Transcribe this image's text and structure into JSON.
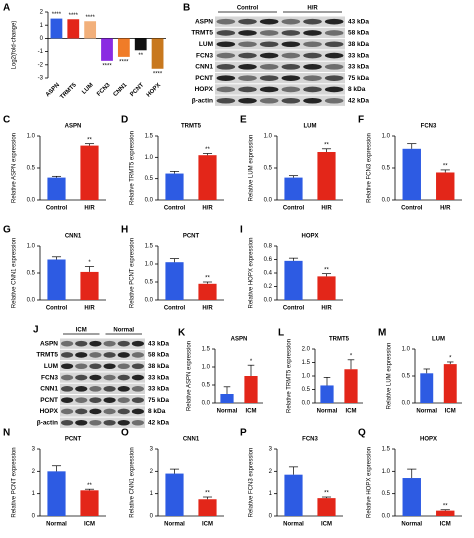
{
  "chart_data": [
    {
      "type": "bar",
      "panel": "A",
      "y_label": "Log2(fold-change)",
      "categories": [
        "ASPN",
        "TRMT5",
        "LUM",
        "FCN3",
        "CNN1",
        "PCNT",
        "HOPX"
      ],
      "values": [
        1.5,
        1.45,
        1.3,
        -1.7,
        -1.4,
        -0.9,
        -2.3
      ],
      "colors": [
        "#2d5be3",
        "#e32619",
        "#f2b07b",
        "#8a2be2",
        "#f07c28",
        "#111111",
        "#c8781e"
      ],
      "significance": [
        "****",
        "****",
        "****",
        "****",
        "****",
        "**",
        "****"
      ],
      "ylim": [
        -3,
        2
      ],
      "yticks": [
        -3,
        -2,
        -1,
        0,
        1,
        2
      ]
    },
    {
      "type": "bar",
      "panel": "C",
      "title": "ASPN",
      "y_label": "Relative ASPN expression",
      "categories": [
        "Control",
        "H/R"
      ],
      "values": [
        0.35,
        0.85
      ],
      "errors": [
        0.02,
        0.03
      ],
      "colors": [
        "#2d5be3",
        "#e32619"
      ],
      "significance": [
        null,
        "**"
      ],
      "ylim": [
        0,
        1
      ],
      "yticks": [
        {
          "value": 0,
          "label": "0.0"
        },
        0.5,
        {
          "value": 1,
          "label": "1.0"
        }
      ]
    },
    {
      "type": "bar",
      "panel": "D",
      "title": "TRMT5",
      "y_label": "Relative TRMT5 expression",
      "categories": [
        "Control",
        "H/R"
      ],
      "values": [
        0.62,
        1.05
      ],
      "errors": [
        0.05,
        0.04
      ],
      "colors": [
        "#2d5be3",
        "#e32619"
      ],
      "significance": [
        null,
        "**"
      ],
      "ylim": [
        0,
        1.5
      ],
      "yticks": [
        {
          "value": 0,
          "label": "0.0"
        },
        0.5,
        {
          "value": 1,
          "label": "1.0"
        },
        1.5
      ]
    },
    {
      "type": "bar",
      "panel": "E",
      "title": "LUM",
      "y_label": "Relative LUM expression",
      "categories": [
        "Control",
        "H/R"
      ],
      "values": [
        0.35,
        0.75
      ],
      "errors": [
        0.03,
        0.05
      ],
      "colors": [
        "#2d5be3",
        "#e32619"
      ],
      "significance": [
        null,
        "**"
      ],
      "ylim": [
        0,
        1
      ],
      "yticks": [
        {
          "value": 0,
          "label": "0.0"
        },
        0.5,
        {
          "value": 1,
          "label": "1.0"
        }
      ]
    },
    {
      "type": "bar",
      "panel": "F",
      "title": "FCN3",
      "y_label": "Relative FCN3 expression",
      "categories": [
        "Control",
        "H/R"
      ],
      "values": [
        0.8,
        0.43
      ],
      "errors": [
        0.08,
        0.04
      ],
      "colors": [
        "#2d5be3",
        "#e32619"
      ],
      "significance": [
        null,
        "**"
      ],
      "ylim": [
        0,
        1
      ],
      "yticks": [
        {
          "value": 0,
          "label": "0.0"
        },
        0.5,
        {
          "value": 1,
          "label": "1.0"
        }
      ]
    },
    {
      "type": "bar",
      "panel": "G",
      "title": "CNN1",
      "y_label": "Relative CNN1 expression",
      "categories": [
        "Control",
        "H/R"
      ],
      "values": [
        0.75,
        0.52
      ],
      "errors": [
        0.05,
        0.1
      ],
      "colors": [
        "#2d5be3",
        "#e32619"
      ],
      "significance": [
        null,
        "*"
      ],
      "ylim": [
        0,
        1
      ],
      "yticks": [
        {
          "value": 0,
          "label": "0.0"
        },
        0.5,
        {
          "value": 1,
          "label": "1.0"
        }
      ]
    },
    {
      "type": "bar",
      "panel": "H",
      "title": "PCNT",
      "y_label": "Relative PCNT expression",
      "categories": [
        "Control",
        "H/R"
      ],
      "values": [
        1.05,
        0.45
      ],
      "errors": [
        0.1,
        0.05
      ],
      "colors": [
        "#2d5be3",
        "#e32619"
      ],
      "significance": [
        null,
        "**"
      ],
      "ylim": [
        0,
        1.5
      ],
      "yticks": [
        {
          "value": 0,
          "label": "0.0"
        },
        0.5,
        {
          "value": 1,
          "label": "1.0"
        },
        1.5
      ]
    },
    {
      "type": "bar",
      "panel": "I",
      "title": "HOPX",
      "y_label": "Relative HOPX expression",
      "categories": [
        "Control",
        "H/R"
      ],
      "values": [
        0.58,
        0.35
      ],
      "errors": [
        0.04,
        0.04
      ],
      "colors": [
        "#2d5be3",
        "#e32619"
      ],
      "significance": [
        null,
        "**"
      ],
      "ylim": [
        0,
        0.8
      ],
      "yticks": [
        {
          "value": 0,
          "label": "0.0"
        },
        0.2,
        0.4,
        0.6,
        0.8
      ]
    },
    {
      "type": "bar",
      "panel": "K",
      "title": "ASPN",
      "y_label": "Relative ASPN expression",
      "categories": [
        "Normal",
        "ICM"
      ],
      "values": [
        0.25,
        0.75
      ],
      "errors": [
        0.2,
        0.3
      ],
      "colors": [
        "#2d5be3",
        "#e32619"
      ],
      "significance": [
        null,
        "*"
      ],
      "ylim": [
        0,
        1.5
      ],
      "yticks": [
        {
          "value": 0,
          "label": "0.0"
        },
        0.5,
        {
          "value": 1,
          "label": "1.0"
        },
        1.5
      ]
    },
    {
      "type": "bar",
      "panel": "L",
      "title": "TRMT5",
      "y_label": "Relative TRMT5 expression",
      "categories": [
        "Normal",
        "ICM"
      ],
      "values": [
        0.65,
        1.25
      ],
      "errors": [
        0.3,
        0.35
      ],
      "colors": [
        "#2d5be3",
        "#e32619"
      ],
      "significance": [
        null,
        "*"
      ],
      "ylim": [
        0,
        2
      ],
      "yticks": [
        {
          "value": 0,
          "label": "0.0"
        },
        0.5,
        {
          "value": 1,
          "label": "1.0"
        },
        1.5,
        {
          "value": 2,
          "label": "2.0"
        }
      ]
    },
    {
      "type": "bar",
      "panel": "M",
      "title": "LUM",
      "y_label": "Relative LUM expression",
      "categories": [
        "Normal",
        "ICM"
      ],
      "values": [
        0.55,
        0.72
      ],
      "errors": [
        0.08,
        0.04
      ],
      "colors": [
        "#2d5be3",
        "#e32619"
      ],
      "significance": [
        null,
        "*"
      ],
      "ylim": [
        0,
        1
      ],
      "yticks": [
        {
          "value": 0,
          "label": "0.0"
        },
        0.5,
        {
          "value": 1,
          "label": "1.0"
        }
      ]
    },
    {
      "type": "bar",
      "panel": "N",
      "title": "PCNT",
      "y_label": "Relative PCNT expression",
      "categories": [
        "Normal",
        "ICM"
      ],
      "values": [
        2.0,
        1.15
      ],
      "errors": [
        0.25,
        0.05
      ],
      "colors": [
        "#2d5be3",
        "#e32619"
      ],
      "significance": [
        null,
        "**"
      ],
      "ylim": [
        0,
        3
      ],
      "yticks": [
        0,
        1,
        2,
        3
      ]
    },
    {
      "type": "bar",
      "panel": "O",
      "title": "CNN1",
      "y_label": "Relative CNN1 expression",
      "categories": [
        "Normal",
        "ICM"
      ],
      "values": [
        1.9,
        0.75
      ],
      "errors": [
        0.2,
        0.1
      ],
      "colors": [
        "#2d5be3",
        "#e32619"
      ],
      "significance": [
        null,
        "**"
      ],
      "ylim": [
        0,
        3
      ],
      "yticks": [
        0,
        1,
        2,
        3
      ]
    },
    {
      "type": "bar",
      "panel": "P",
      "title": "FCN3",
      "y_label": "Relative FCN3 expression",
      "categories": [
        "Normal",
        "ICM"
      ],
      "values": [
        1.85,
        0.8
      ],
      "errors": [
        0.35,
        0.05
      ],
      "colors": [
        "#2d5be3",
        "#e32619"
      ],
      "significance": [
        null,
        "**"
      ],
      "ylim": [
        0,
        3
      ],
      "yticks": [
        0,
        1,
        2,
        3
      ]
    },
    {
      "type": "bar",
      "panel": "Q",
      "title": "HOPX",
      "y_label": "Relative HOPX expression",
      "categories": [
        "Normal",
        "ICM"
      ],
      "values": [
        0.85,
        0.12
      ],
      "errors": [
        0.2,
        0.02
      ],
      "colors": [
        "#2d5be3",
        "#e32619"
      ],
      "significance": [
        null,
        "**"
      ],
      "ylim": [
        0,
        1.5
      ],
      "yticks": [
        {
          "value": 0,
          "label": "0.0"
        },
        0.5,
        {
          "value": 1,
          "label": "1.0"
        },
        1.5
      ]
    }
  ],
  "blots": [
    {
      "panel": "B",
      "groups": [
        "Control",
        "H/R"
      ],
      "proteins": [
        "ASPN",
        "TRMT5",
        "LUM",
        "FCN3",
        "CNN1",
        "PCNT",
        "HOPX",
        "β-actin"
      ],
      "sizes": [
        "43 kDa",
        "58 kDa",
        "38 kDa",
        "33 kDa",
        "33 kDa",
        "75 kDa",
        "8 kDa",
        "42 kDa"
      ]
    },
    {
      "panel": "J",
      "groups": [
        "ICM",
        "Normal"
      ],
      "proteins": [
        "ASPN",
        "TRMT5",
        "LUM",
        "FCN3",
        "CNN1",
        "PCNT",
        "HOPX",
        "β-actin"
      ],
      "sizes": [
        "43 kDa",
        "58 kDa",
        "38 kDa",
        "33 kDa",
        "33 kDa",
        "75 kDa",
        "8 kDa",
        "42 kDa"
      ]
    }
  ]
}
